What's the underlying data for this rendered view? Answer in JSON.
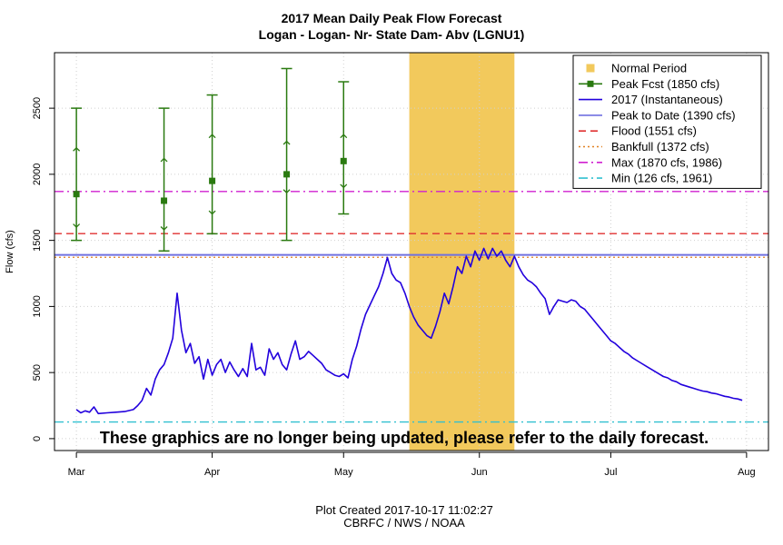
{
  "chart_data": {
    "type": "line",
    "title": "2017 Mean Daily Peak Flow Forecast",
    "subtitle": "Logan - Logan- Nr- State Dam- Abv (LGNU1)",
    "ylabel": "Flow (cfs)",
    "xlabel": "",
    "ylim": [
      -90,
      2920
    ],
    "xlim": [
      "2017-02-24",
      "2017-08-06"
    ],
    "x_ticks": [
      {
        "date": "2017-03-01",
        "label": "Mar"
      },
      {
        "date": "2017-04-01",
        "label": "Apr"
      },
      {
        "date": "2017-05-01",
        "label": "May"
      },
      {
        "date": "2017-06-01",
        "label": "Jun"
      },
      {
        "date": "2017-07-01",
        "label": "Jul"
      },
      {
        "date": "2017-08-01",
        "label": "Aug"
      }
    ],
    "y_ticks": [
      0,
      500,
      1000,
      1500,
      2000,
      2500
    ],
    "grid": true,
    "normal_period": {
      "start": "2017-05-16",
      "end": "2017-06-09",
      "color": "#f2c95c"
    },
    "peak_forecasts": [
      {
        "date": "2017-03-01",
        "value": 1850,
        "p10": 1500,
        "p30": 1600,
        "p70": 2200,
        "p90": 2500
      },
      {
        "date": "2017-03-21",
        "value": 1800,
        "p10": 1420,
        "p30": 1580,
        "p70": 2120,
        "p90": 2500
      },
      {
        "date": "2017-04-01",
        "value": 1950,
        "p10": 1550,
        "p30": 1700,
        "p70": 2300,
        "p90": 2600
      },
      {
        "date": "2017-04-18",
        "value": 2000,
        "p10": 1500,
        "p30": 1860,
        "p70": 2250,
        "p90": 2800
      },
      {
        "date": "2017-05-01",
        "value": 2100,
        "p10": 1700,
        "p30": 1900,
        "p70": 2300,
        "p90": 2700
      }
    ],
    "observed_2017": [
      [
        "2017-03-01",
        220
      ],
      [
        "2017-03-02",
        195
      ],
      [
        "2017-03-03",
        210
      ],
      [
        "2017-03-04",
        200
      ],
      [
        "2017-03-05",
        240
      ],
      [
        "2017-03-06",
        190
      ],
      [
        "2017-03-08",
        195
      ],
      [
        "2017-03-10",
        200
      ],
      [
        "2017-03-12",
        205
      ],
      [
        "2017-03-14",
        220
      ],
      [
        "2017-03-15",
        250
      ],
      [
        "2017-03-16",
        290
      ],
      [
        "2017-03-17",
        380
      ],
      [
        "2017-03-18",
        330
      ],
      [
        "2017-03-19",
        450
      ],
      [
        "2017-03-20",
        520
      ],
      [
        "2017-03-21",
        560
      ],
      [
        "2017-03-22",
        650
      ],
      [
        "2017-03-23",
        760
      ],
      [
        "2017-03-24",
        1100
      ],
      [
        "2017-03-25",
        820
      ],
      [
        "2017-03-26",
        650
      ],
      [
        "2017-03-27",
        720
      ],
      [
        "2017-03-28",
        570
      ],
      [
        "2017-03-29",
        620
      ],
      [
        "2017-03-30",
        450
      ],
      [
        "2017-03-31",
        600
      ],
      [
        "2017-04-01",
        480
      ],
      [
        "2017-04-02",
        560
      ],
      [
        "2017-04-03",
        600
      ],
      [
        "2017-04-04",
        500
      ],
      [
        "2017-04-05",
        580
      ],
      [
        "2017-04-06",
        520
      ],
      [
        "2017-04-07",
        470
      ],
      [
        "2017-04-08",
        530
      ],
      [
        "2017-04-09",
        470
      ],
      [
        "2017-04-10",
        720
      ],
      [
        "2017-04-11",
        520
      ],
      [
        "2017-04-12",
        540
      ],
      [
        "2017-04-13",
        480
      ],
      [
        "2017-04-14",
        680
      ],
      [
        "2017-04-15",
        600
      ],
      [
        "2017-04-16",
        650
      ],
      [
        "2017-04-17",
        560
      ],
      [
        "2017-04-18",
        520
      ],
      [
        "2017-04-19",
        640
      ],
      [
        "2017-04-20",
        740
      ],
      [
        "2017-04-21",
        600
      ],
      [
        "2017-04-22",
        620
      ],
      [
        "2017-04-23",
        660
      ],
      [
        "2017-04-24",
        630
      ],
      [
        "2017-04-25",
        600
      ],
      [
        "2017-04-26",
        570
      ],
      [
        "2017-04-27",
        520
      ],
      [
        "2017-04-28",
        500
      ],
      [
        "2017-04-29",
        480
      ],
      [
        "2017-04-30",
        470
      ],
      [
        "2017-05-01",
        490
      ],
      [
        "2017-05-02",
        460
      ],
      [
        "2017-05-03",
        600
      ],
      [
        "2017-05-04",
        700
      ],
      [
        "2017-05-05",
        830
      ],
      [
        "2017-05-06",
        940
      ],
      [
        "2017-05-07",
        1010
      ],
      [
        "2017-05-08",
        1080
      ],
      [
        "2017-05-09",
        1150
      ],
      [
        "2017-05-10",
        1250
      ],
      [
        "2017-05-11",
        1370
      ],
      [
        "2017-05-12",
        1250
      ],
      [
        "2017-05-13",
        1200
      ],
      [
        "2017-05-14",
        1180
      ],
      [
        "2017-05-15",
        1100
      ],
      [
        "2017-05-16",
        1000
      ],
      [
        "2017-05-17",
        920
      ],
      [
        "2017-05-18",
        860
      ],
      [
        "2017-05-19",
        820
      ],
      [
        "2017-05-20",
        780
      ],
      [
        "2017-05-21",
        760
      ],
      [
        "2017-05-22",
        850
      ],
      [
        "2017-05-23",
        960
      ],
      [
        "2017-05-24",
        1100
      ],
      [
        "2017-05-25",
        1020
      ],
      [
        "2017-05-26",
        1150
      ],
      [
        "2017-05-27",
        1300
      ],
      [
        "2017-05-28",
        1250
      ],
      [
        "2017-05-29",
        1380
      ],
      [
        "2017-05-30",
        1300
      ],
      [
        "2017-05-31",
        1420
      ],
      [
        "2017-06-01",
        1350
      ],
      [
        "2017-06-02",
        1440
      ],
      [
        "2017-06-03",
        1360
      ],
      [
        "2017-06-04",
        1440
      ],
      [
        "2017-06-05",
        1380
      ],
      [
        "2017-06-06",
        1420
      ],
      [
        "2017-06-07",
        1350
      ],
      [
        "2017-06-08",
        1300
      ],
      [
        "2017-06-09",
        1380
      ],
      [
        "2017-06-10",
        1300
      ],
      [
        "2017-06-11",
        1240
      ],
      [
        "2017-06-12",
        1200
      ],
      [
        "2017-06-13",
        1180
      ],
      [
        "2017-06-14",
        1150
      ],
      [
        "2017-06-15",
        1100
      ],
      [
        "2017-06-16",
        1060
      ],
      [
        "2017-06-17",
        940
      ],
      [
        "2017-06-18",
        1000
      ],
      [
        "2017-06-19",
        1050
      ],
      [
        "2017-06-20",
        1040
      ],
      [
        "2017-06-21",
        1030
      ],
      [
        "2017-06-22",
        1050
      ],
      [
        "2017-06-23",
        1040
      ],
      [
        "2017-06-24",
        1000
      ],
      [
        "2017-06-25",
        980
      ],
      [
        "2017-06-26",
        940
      ],
      [
        "2017-06-27",
        900
      ],
      [
        "2017-06-28",
        860
      ],
      [
        "2017-06-29",
        820
      ],
      [
        "2017-06-30",
        780
      ],
      [
        "2017-07-01",
        740
      ],
      [
        "2017-07-02",
        720
      ],
      [
        "2017-07-03",
        690
      ],
      [
        "2017-07-04",
        660
      ],
      [
        "2017-07-05",
        640
      ],
      [
        "2017-07-06",
        610
      ],
      [
        "2017-07-07",
        590
      ],
      [
        "2017-07-08",
        570
      ],
      [
        "2017-07-09",
        550
      ],
      [
        "2017-07-10",
        530
      ],
      [
        "2017-07-11",
        510
      ],
      [
        "2017-07-12",
        490
      ],
      [
        "2017-07-13",
        470
      ],
      [
        "2017-07-14",
        460
      ],
      [
        "2017-07-15",
        440
      ],
      [
        "2017-07-16",
        430
      ],
      [
        "2017-07-17",
        410
      ],
      [
        "2017-07-18",
        400
      ],
      [
        "2017-07-19",
        390
      ],
      [
        "2017-07-20",
        380
      ],
      [
        "2017-07-21",
        370
      ],
      [
        "2017-07-22",
        360
      ],
      [
        "2017-07-23",
        355
      ],
      [
        "2017-07-24",
        345
      ],
      [
        "2017-07-25",
        340
      ],
      [
        "2017-07-26",
        330
      ],
      [
        "2017-07-27",
        320
      ],
      [
        "2017-07-28",
        315
      ],
      [
        "2017-07-29",
        305
      ],
      [
        "2017-07-30",
        300
      ],
      [
        "2017-07-31",
        290
      ]
    ],
    "reference_lines": [
      {
        "key": "peak_to_date",
        "value": 1390,
        "color": "#7070e0",
        "dash": "solid"
      },
      {
        "key": "flood",
        "value": 1551,
        "color": "#e03030",
        "dash": "dashed"
      },
      {
        "key": "bankfull",
        "value": 1372,
        "color": "#e08020",
        "dash": "dotted"
      },
      {
        "key": "max",
        "value": 1870,
        "color": "#d020d0",
        "dash": "dashdot"
      },
      {
        "key": "min",
        "value": 126,
        "color": "#30c0d0",
        "dash": "dashdot"
      }
    ],
    "legend": {
      "position": "top-right",
      "entries": [
        {
          "label": "Normal Period",
          "type": "square",
          "color": "#f2c95c"
        },
        {
          "label": "Peak Fcst (1850 cfs)",
          "type": "line-square",
          "color": "#2a7a10"
        },
        {
          "label": "2017  (Instantaneous)",
          "type": "line",
          "color": "#2200dd"
        },
        {
          "label": "Peak to Date (1390 cfs)",
          "type": "line",
          "color": "#7070e0"
        },
        {
          "label": "Flood (1551 cfs)",
          "type": "dashed",
          "color": "#e03030"
        },
        {
          "label": "Bankfull (1372 cfs)",
          "type": "dotted",
          "color": "#e08020"
        },
        {
          "label": "Max (1870 cfs, 1986)",
          "type": "dashdot",
          "color": "#d020d0"
        },
        {
          "label": "Min (126 cfs, 1961)",
          "type": "dashdot",
          "color": "#30c0d0"
        }
      ]
    },
    "overlay_text": "These graphics are no longer being updated, please refer to the daily forecast.",
    "colors": {
      "forecast": "#2a7a10",
      "observed": "#2200dd",
      "grid": "#d0d0d0"
    }
  },
  "footer": {
    "line1": "Plot Created 2017-10-17 11:02:27",
    "line2": "CBRFC / NWS / NOAA"
  }
}
